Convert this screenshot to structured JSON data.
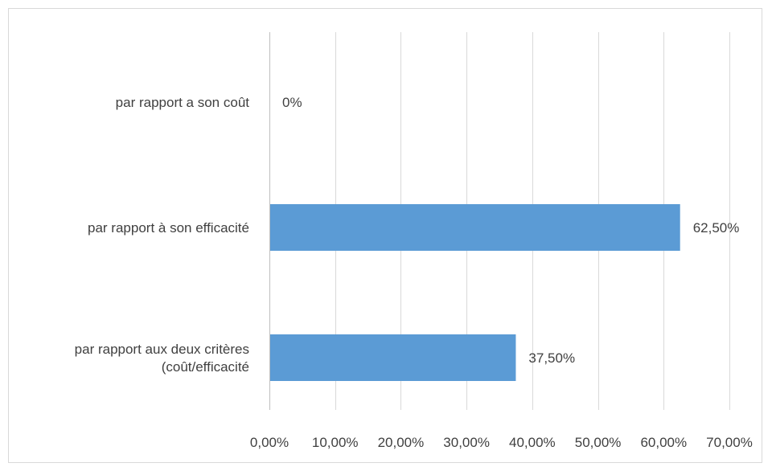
{
  "chart_data": {
    "type": "bar",
    "orientation": "horizontal",
    "categories": [
      [
        "par rapport a son coût"
      ],
      [
        "par rapport à son efficacité"
      ],
      [
        "par rapport aux deux critères",
        "(coût/efficacité"
      ]
    ],
    "values": [
      0,
      62.5,
      37.5
    ],
    "data_labels": [
      "0%",
      "62,50%",
      "37,50%"
    ],
    "x_ticks": [
      0,
      10,
      20,
      30,
      40,
      50,
      60,
      70
    ],
    "x_tick_labels": [
      "0,00%",
      "10,00%",
      "20,00%",
      "30,00%",
      "40,00%",
      "50,00%",
      "60,00%",
      "70,00%"
    ],
    "xlim": [
      0,
      70
    ],
    "grid": true,
    "bar_color": "#5b9bd5",
    "title": "",
    "xlabel": "",
    "ylabel": ""
  }
}
